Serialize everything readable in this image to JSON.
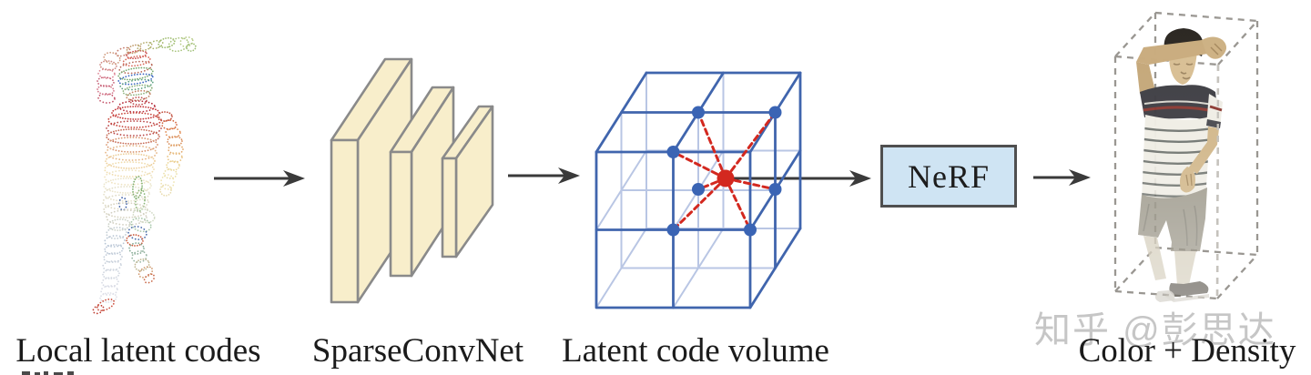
{
  "diagram": {
    "stages": [
      {
        "id": "local-latent-codes",
        "label": "Local latent codes"
      },
      {
        "id": "sparseconvnet",
        "label": "SparseConvNet"
      },
      {
        "id": "latent-code-volume",
        "label": "Latent code volume"
      },
      {
        "id": "color-density",
        "label": "Color + Density"
      }
    ],
    "nerf_label": "NeRF",
    "watermark": "知乎 @彭思达",
    "colors": {
      "arrow": "#3a3a3a",
      "slab_fill": "#f8eecb",
      "slab_stroke": "#8a8a8a",
      "cube_blue": "#4065ad",
      "cube_light": "#b9c6e4",
      "dot_blue": "#3a64b4",
      "query_red": "#d3281f",
      "nerf_fill": "#cfe4f3",
      "nerf_border": "#4f4f4f",
      "label_text": "#1b1b1b",
      "watermark_gray": "#c6c6c6",
      "dashed_box": "#9a9792"
    }
  }
}
